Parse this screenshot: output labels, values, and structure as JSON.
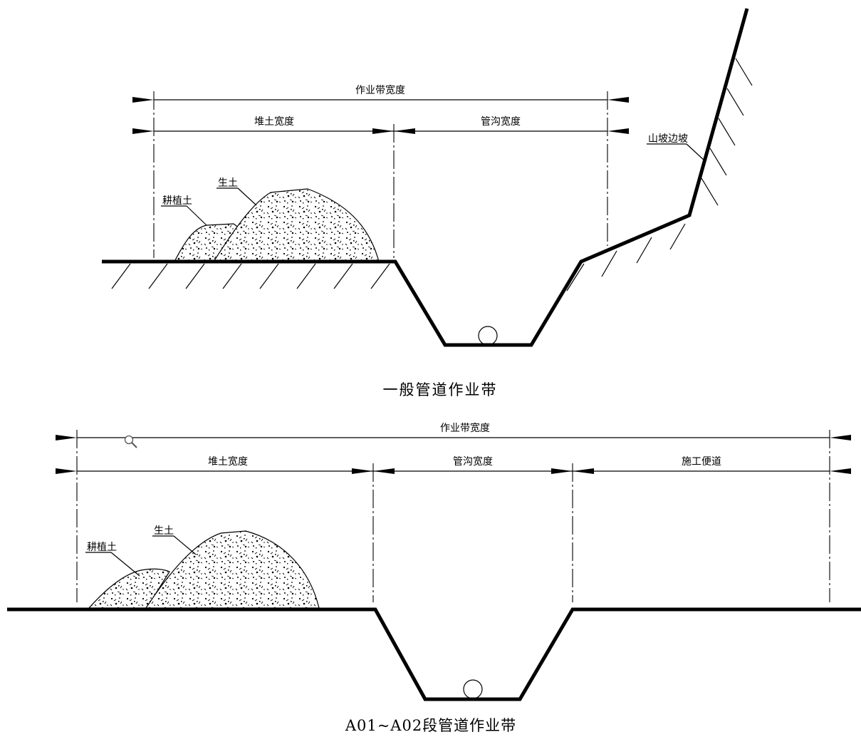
{
  "diagram_top": {
    "caption": "一般管道作业带",
    "dimensions": {
      "total": "作业带宽度",
      "spoil": "堆土宽度",
      "trench": "管沟宽度"
    },
    "labels": {
      "topsoil": "耕植土",
      "raw_soil": "生土",
      "slope": "山坡边坡"
    }
  },
  "diagram_bottom": {
    "caption": "A01~A02段管道作业带",
    "dimensions": {
      "total": "作业带宽度",
      "spoil": "堆土宽度",
      "trench": "管沟宽度",
      "road": "施工便道"
    },
    "labels": {
      "topsoil": "耕植土",
      "raw_soil": "生土"
    }
  },
  "icons": [
    "magnifier-icon"
  ]
}
